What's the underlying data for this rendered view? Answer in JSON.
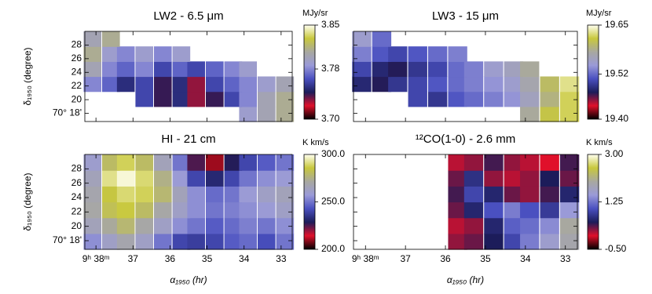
{
  "colormap": [
    "#000000",
    "#e0102a",
    "#1c1c5a",
    "#4a50c0",
    "#9a9ad8",
    "#a8a8a0",
    "#c8c83c",
    "#fffff0"
  ],
  "chart_data": [
    {
      "type": "heatmap",
      "title": "LW2 - 6.5 μm",
      "unit": "MJy/sr",
      "xlim": [
        38.3,
        32.7
      ],
      "ylim": [
        16.8,
        30
      ],
      "xticks": [
        38,
        37,
        36,
        35,
        34,
        33
      ],
      "xtick_labels": false,
      "yticks": [
        {
          "value": 18,
          "label": "70° 18'"
        },
        20,
        22,
        24,
        26,
        28
      ],
      "ytick_labels": true,
      "ylabel": "δ₁₉₅₀ (degree)",
      "x": [
        38.1,
        37.6,
        37.2,
        36.7,
        36.2,
        35.7,
        35.3,
        34.8,
        34.3,
        33.9,
        33.4,
        32.9
      ],
      "y": [
        17.9,
        20.1,
        22.3,
        24.5,
        26.7,
        28.9
      ],
      "z": [
        [
          null,
          null,
          null,
          null,
          null,
          null,
          null,
          null,
          null,
          3.79,
          3.8,
          3.81
        ],
        [
          null,
          null,
          null,
          3.76,
          3.74,
          3.75,
          3.73,
          3.74,
          3.76,
          3.78,
          3.8,
          3.81
        ],
        [
          3.78,
          3.77,
          3.75,
          3.76,
          3.74,
          3.75,
          3.73,
          3.76,
          3.77,
          3.78,
          3.79,
          3.8
        ],
        [
          3.8,
          3.78,
          3.77,
          3.78,
          3.76,
          3.77,
          3.76,
          3.77,
          3.78,
          3.79,
          null,
          null
        ],
        [
          3.81,
          3.79,
          3.78,
          3.79,
          3.78,
          3.79,
          null,
          null,
          null,
          null,
          null,
          null
        ],
        [
          3.8,
          3.81,
          null,
          null,
          null,
          null,
          null,
          null,
          null,
          null,
          null,
          null
        ]
      ],
      "zlim": [
        3.7,
        3.85
      ],
      "zticks": [
        {
          "value": 3.7,
          "label": "3.70"
        },
        {
          "value": 3.78,
          "label": "3.78"
        },
        {
          "value": 3.85,
          "label": "3.85"
        }
      ]
    },
    {
      "type": "heatmap",
      "title": "LW3 - 15 μm",
      "unit": "MJy/sr",
      "xlim": [
        38.3,
        32.7
      ],
      "ylim": [
        16.8,
        30
      ],
      "xticks": [
        38,
        37,
        36,
        35,
        34,
        33
      ],
      "xtick_labels": false,
      "yticks": [
        18,
        20,
        22,
        24,
        26,
        28
      ],
      "ytick_labels": false,
      "x": [
        38.1,
        37.6,
        37.2,
        36.7,
        36.2,
        35.7,
        35.3,
        34.8,
        34.3,
        33.9,
        33.4,
        32.9
      ],
      "y": [
        17.9,
        20.1,
        22.3,
        24.5,
        26.7,
        28.9
      ],
      "z": [
        [
          null,
          null,
          null,
          null,
          null,
          null,
          null,
          null,
          null,
          19.58,
          19.61,
          19.62
        ],
        [
          null,
          null,
          null,
          19.5,
          19.49,
          19.51,
          19.52,
          19.53,
          19.54,
          19.56,
          19.59,
          19.62
        ],
        [
          19.48,
          19.47,
          19.49,
          19.5,
          19.51,
          19.52,
          19.53,
          19.54,
          19.55,
          19.57,
          19.6,
          19.63
        ],
        [
          19.5,
          19.48,
          19.47,
          19.49,
          19.5,
          19.52,
          19.53,
          19.55,
          19.56,
          19.58,
          null,
          null
        ],
        [
          19.53,
          19.51,
          19.5,
          19.51,
          19.52,
          19.53,
          null,
          null,
          null,
          null,
          null,
          null
        ],
        [
          19.55,
          19.52,
          null,
          null,
          null,
          null,
          null,
          null,
          null,
          null,
          null,
          null
        ]
      ],
      "zlim": [
        19.4,
        19.65
      ],
      "zticks": [
        {
          "value": 19.4,
          "label": "19.40"
        },
        {
          "value": 19.52,
          "label": "19.52"
        },
        {
          "value": 19.65,
          "label": "19.65"
        }
      ]
    },
    {
      "type": "heatmap",
      "title": "HI - 21 cm",
      "unit": "K km/s",
      "xlim": [
        38.3,
        32.7
      ],
      "ylim": [
        16.8,
        30
      ],
      "xticks": [
        {
          "value": 38,
          "label": "9ʰ 38ᵐ"
        },
        37,
        36,
        35,
        34,
        33
      ],
      "xtick_labels": true,
      "yticks": [
        {
          "value": 18,
          "label": "70° 18'"
        },
        20,
        22,
        24,
        26,
        28
      ],
      "ytick_labels": true,
      "xlabel": "α₁₉₅₀ (hr)",
      "ylabel": "δ₁₉₅₀ (degree)",
      "x": [
        38.1,
        37.6,
        37.2,
        36.7,
        36.2,
        35.7,
        35.3,
        34.8,
        34.3,
        33.9,
        33.4,
        32.9
      ],
      "y": [
        17.9,
        20.1,
        22.3,
        24.5,
        26.7,
        28.9
      ],
      "z": [
        [
          255,
          262,
          268,
          262,
          250,
          240,
          238,
          240,
          245,
          248,
          242,
          250
        ],
        [
          265,
          272,
          278,
          270,
          262,
          255,
          250,
          245,
          248,
          252,
          250,
          255
        ],
        [
          270,
          282,
          286,
          280,
          270,
          262,
          255,
          250,
          252,
          255,
          258,
          262
        ],
        [
          268,
          285,
          290,
          288,
          278,
          265,
          255,
          248,
          250,
          258,
          262,
          265
        ],
        [
          265,
          292,
          298,
          290,
          275,
          258,
          240,
          232,
          240,
          250,
          255,
          258
        ],
        [
          260,
          280,
          288,
          280,
          265,
          250,
          225,
          210,
          228,
          240,
          245,
          250
        ]
      ],
      "zlim": [
        200,
        300
      ],
      "zticks": [
        {
          "value": 200,
          "label": "200.0"
        },
        {
          "value": 250,
          "label": "250.0"
        },
        {
          "value": 300,
          "label": "300.0"
        }
      ]
    },
    {
      "type": "heatmap",
      "title": "¹²CO(1-0) - 2.6 mm",
      "unit": "K km/s",
      "xlim": [
        38.3,
        32.7
      ],
      "ylim": [
        16.8,
        30
      ],
      "xticks": [
        {
          "value": 38,
          "label": "9ʰ 38ᵐ"
        },
        37,
        36,
        35,
        34,
        33
      ],
      "xtick_labels": true,
      "yticks": [
        18,
        20,
        22,
        24,
        26,
        28
      ],
      "ytick_labels": false,
      "xlabel": "α₁₉₅₀ (hr)",
      "x": [
        38.1,
        37.6,
        37.2,
        36.7,
        36.2,
        35.7,
        35.3,
        34.8,
        34.3,
        33.9,
        33.4,
        32.9
      ],
      "y": [
        17.9,
        20.1,
        22.3,
        24.5,
        26.7,
        28.9
      ],
      "z": [
        [
          null,
          null,
          null,
          null,
          null,
          0.2,
          0.3,
          0.5,
          0.9,
          1.3,
          1.6,
          1.9
        ],
        [
          null,
          null,
          null,
          null,
          null,
          0.1,
          0.2,
          0.6,
          1.1,
          1.2,
          1.4,
          2.0
        ],
        [
          null,
          null,
          null,
          null,
          null,
          0.3,
          0.6,
          1.0,
          1.3,
          1.0,
          0.8,
          1.5
        ],
        [
          null,
          null,
          null,
          null,
          null,
          0.4,
          0.9,
          0.6,
          0.3,
          0.2,
          0.4,
          0.6
        ],
        [
          null,
          null,
          null,
          null,
          null,
          0.3,
          0.7,
          0.2,
          0.1,
          0.2,
          0.5,
          0.3
        ],
        [
          null,
          null,
          null,
          null,
          null,
          0.1,
          0.2,
          0.4,
          0.2,
          0.1,
          0.0,
          0.4
        ]
      ],
      "zlim": [
        -0.5,
        3.0
      ],
      "zticks": [
        {
          "value": -0.5,
          "label": "-0.50"
        },
        {
          "value": 1.25,
          "label": "1.25"
        },
        {
          "value": 3.0,
          "label": "3.00"
        }
      ]
    }
  ]
}
